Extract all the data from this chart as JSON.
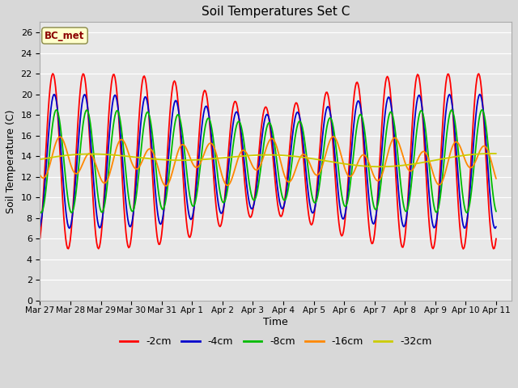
{
  "title": "Soil Temperatures Set C",
  "xlabel": "Time",
  "ylabel": "Soil Temperature (C)",
  "annotation": "BC_met",
  "legend_labels": [
    "-2cm",
    "-4cm",
    "-8cm",
    "-16cm",
    "-32cm"
  ],
  "line_colors": [
    "#ff0000",
    "#0000cc",
    "#00bb00",
    "#ff8800",
    "#cccc00"
  ],
  "xlim_days": [
    0,
    15.5
  ],
  "ylim": [
    0,
    27
  ],
  "yticks": [
    0,
    2,
    4,
    6,
    8,
    10,
    12,
    14,
    16,
    18,
    20,
    22,
    24,
    26
  ],
  "xtick_labels": [
    "Mar 27",
    "Mar 28",
    "Mar 29",
    "Mar 30",
    "Mar 31",
    "Apr 1",
    "Apr 2",
    "Apr 3",
    "Apr 4",
    "Apr 5",
    "Apr 6",
    "Apr 7",
    "Apr 8",
    "Apr 9",
    "Apr 10",
    "Apr 11"
  ],
  "xtick_positions": [
    0,
    1,
    2,
    3,
    4,
    5,
    6,
    7,
    8,
    9,
    10,
    11,
    12,
    13,
    14,
    15
  ],
  "fig_bg_color": "#d8d8d8",
  "plot_bg_color": "#e8e8e8",
  "grid_color": "#ffffff",
  "num_points": 500
}
